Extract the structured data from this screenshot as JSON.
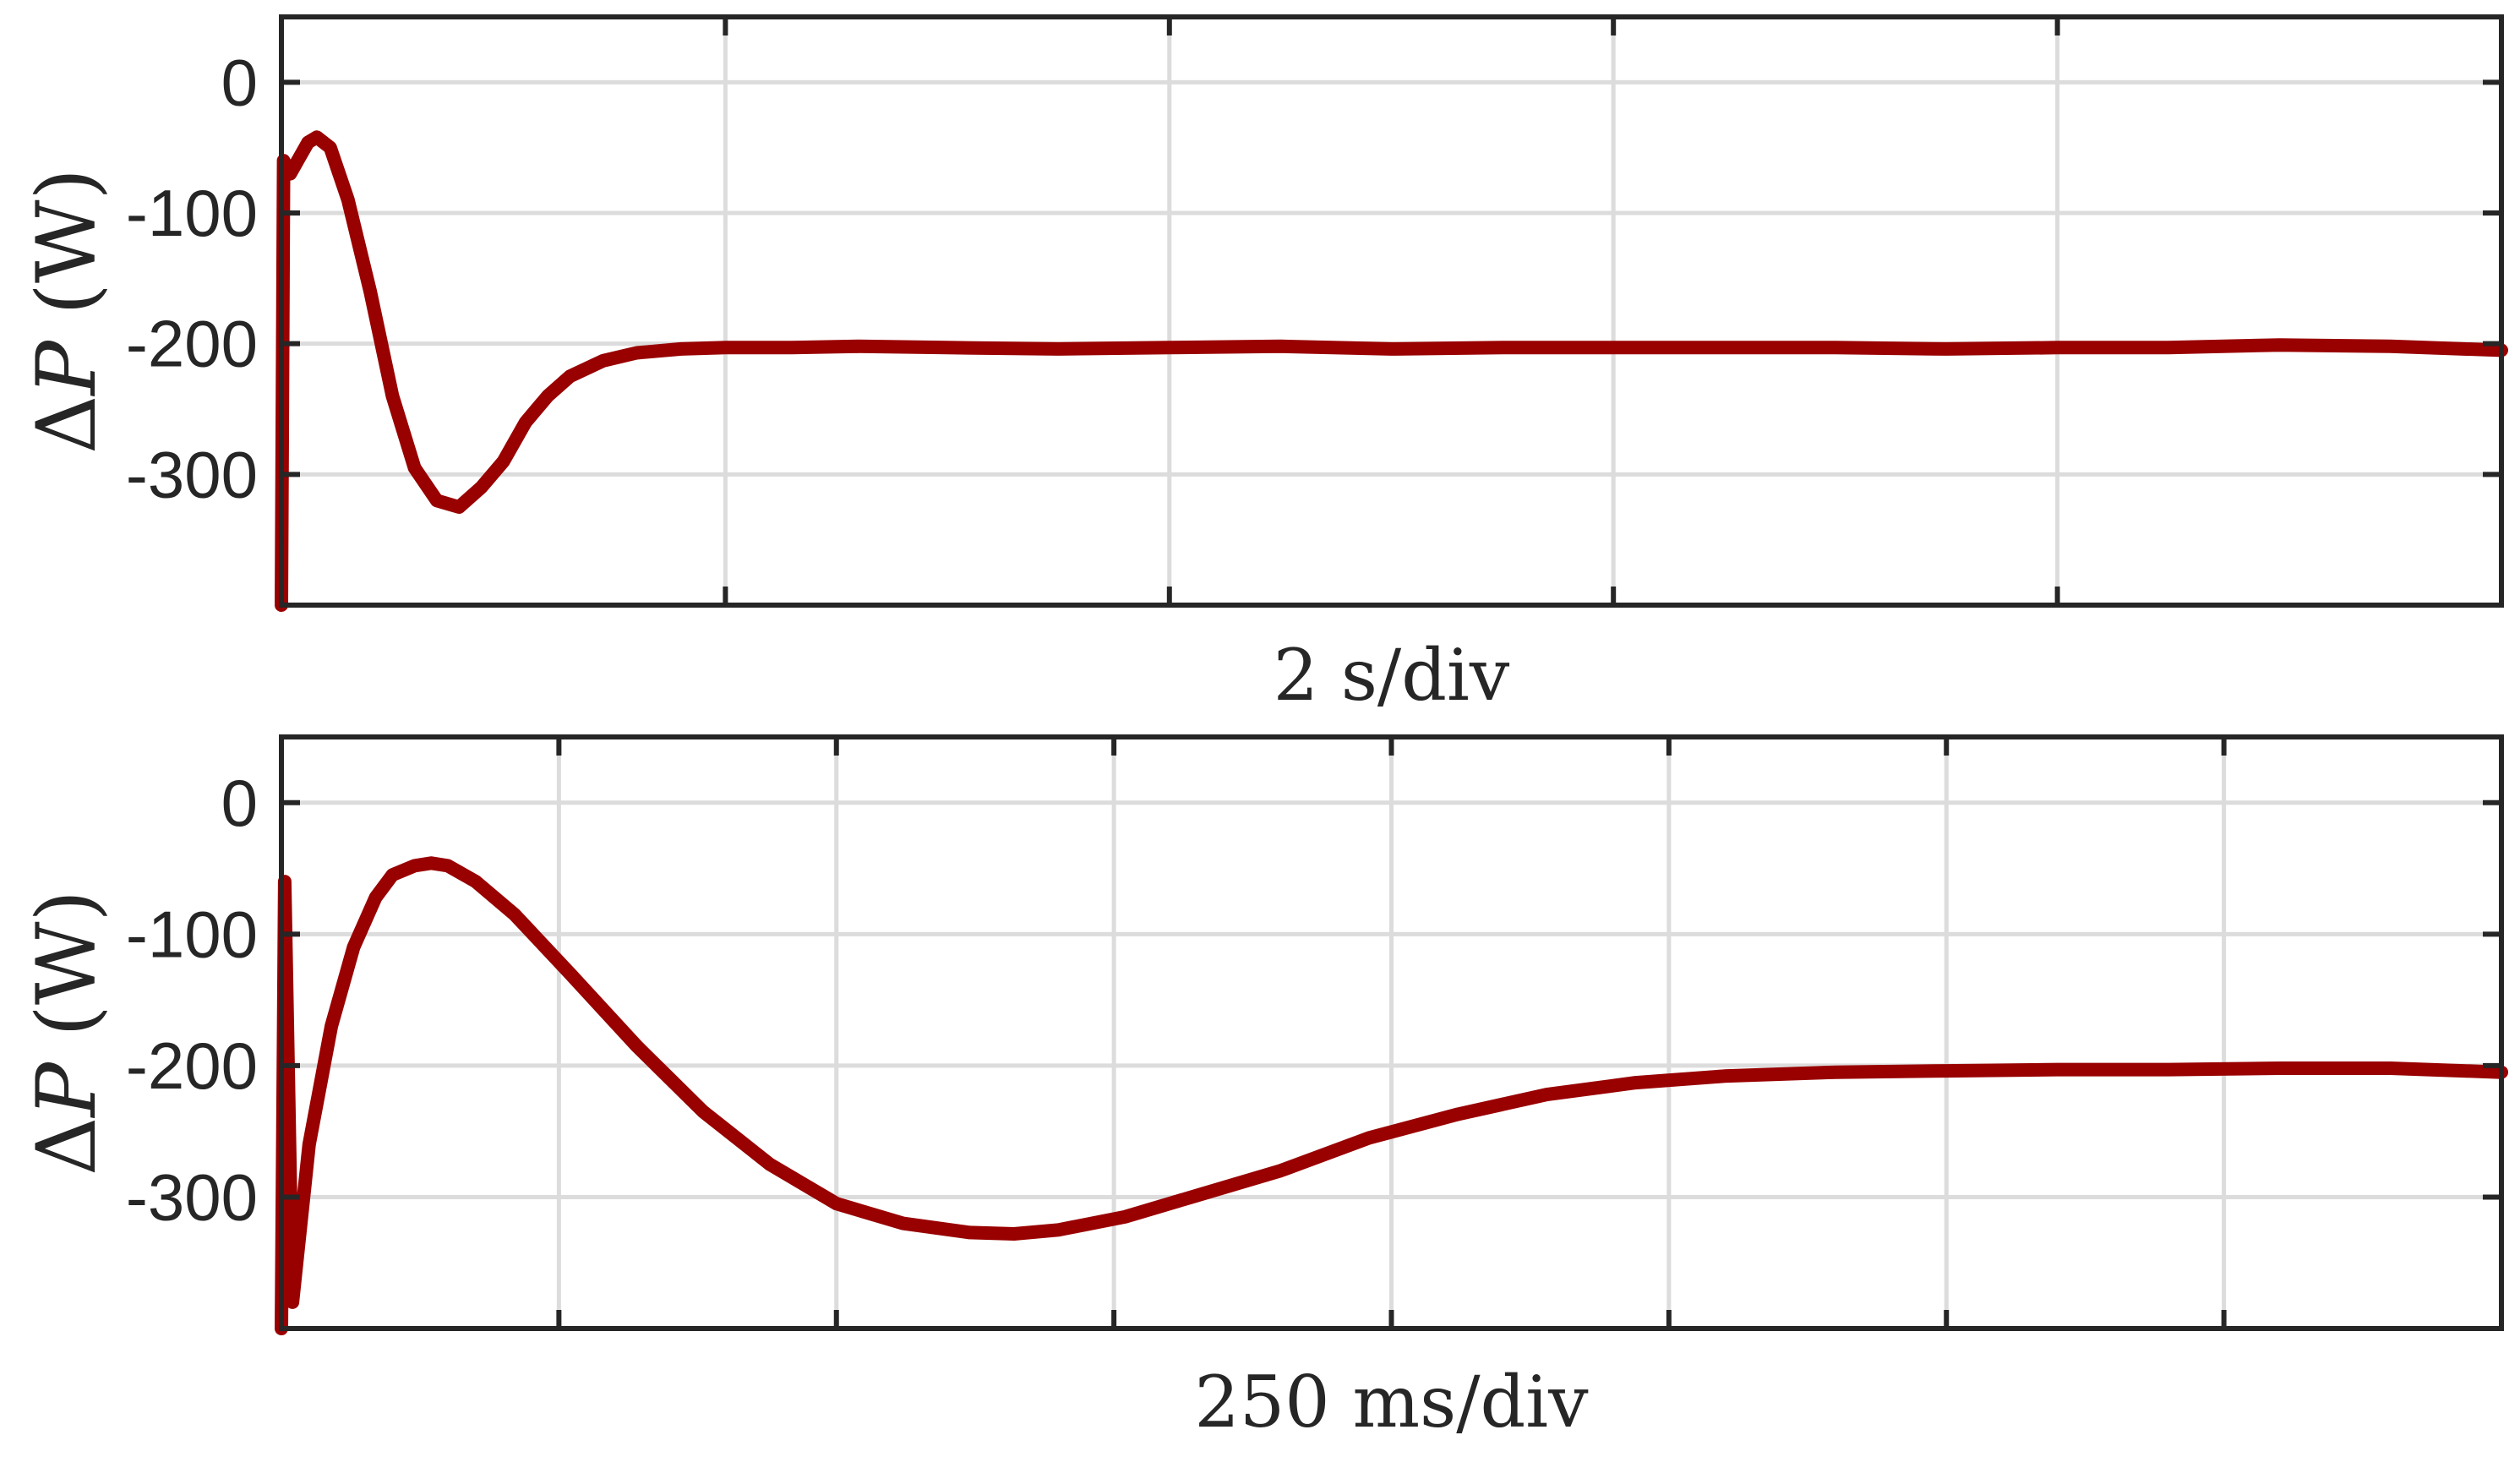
{
  "chart_data": [
    {
      "type": "line",
      "ylabel": "ΔP (W)",
      "xlabel": "2 s/div",
      "ylim": [
        -400,
        50
      ],
      "yticks": [
        0,
        -100,
        -200,
        -300
      ],
      "ytick_labels": [
        "0",
        "-100",
        "-200",
        "-300"
      ],
      "x_divisions": 5,
      "xlim": [
        0,
        10
      ],
      "grid": true,
      "line_color": "#990000",
      "series": [
        {
          "x": [
            0.0,
            0.01,
            0.04,
            0.08,
            0.12,
            0.16,
            0.22,
            0.3,
            0.4,
            0.5,
            0.6,
            0.7,
            0.8,
            0.9,
            1.0,
            1.1,
            1.2,
            1.3,
            1.45,
            1.6,
            1.8,
            2.0,
            2.3,
            2.6,
            3.0,
            3.5,
            4.0,
            4.5,
            5.0,
            5.5,
            6.0,
            6.5,
            7.0,
            7.5,
            8.0,
            8.5,
            9.0,
            9.5,
            10.0
          ],
          "y": [
            -400,
            -60,
            -70,
            -58,
            -46,
            -42,
            -50,
            -90,
            -160,
            -240,
            -295,
            -320,
            -325,
            -310,
            -290,
            -260,
            -240,
            -225,
            -213,
            -207,
            -204,
            -203,
            -203,
            -202,
            -203,
            -204,
            -203,
            -202,
            -204,
            -203,
            -203,
            -203,
            -203,
            -204,
            -203,
            -203,
            -201,
            -202,
            -205
          ]
        }
      ]
    },
    {
      "type": "line",
      "ylabel": "ΔP (W)",
      "xlabel": "250 ms/div",
      "ylim": [
        -400,
        50
      ],
      "yticks": [
        0,
        -100,
        -200,
        -300
      ],
      "ytick_labels": [
        "0",
        "-100",
        "-200",
        "-300"
      ],
      "x_divisions": 8,
      "xlim": [
        0,
        2000
      ],
      "grid": true,
      "line_color": "#990000",
      "series": [
        {
          "x": [
            0,
            3,
            10,
            25,
            45,
            65,
            85,
            100,
            120,
            135,
            150,
            175,
            210,
            260,
            320,
            380,
            440,
            500,
            560,
            620,
            660,
            700,
            760,
            820,
            900,
            980,
            1060,
            1140,
            1220,
            1300,
            1400,
            1500,
            1600,
            1700,
            1800,
            1900,
            2000
          ],
          "y": [
            -400,
            -60,
            -380,
            -260,
            -170,
            -110,
            -72,
            -55,
            -48,
            -46,
            -48,
            -60,
            -85,
            -130,
            -185,
            -235,
            -275,
            -305,
            -320,
            -327,
            -328,
            -325,
            -315,
            -300,
            -280,
            -255,
            -237,
            -222,
            -213,
            -208,
            -205,
            -204,
            -203,
            -203,
            -202,
            -202,
            -205
          ]
        }
      ]
    }
  ]
}
